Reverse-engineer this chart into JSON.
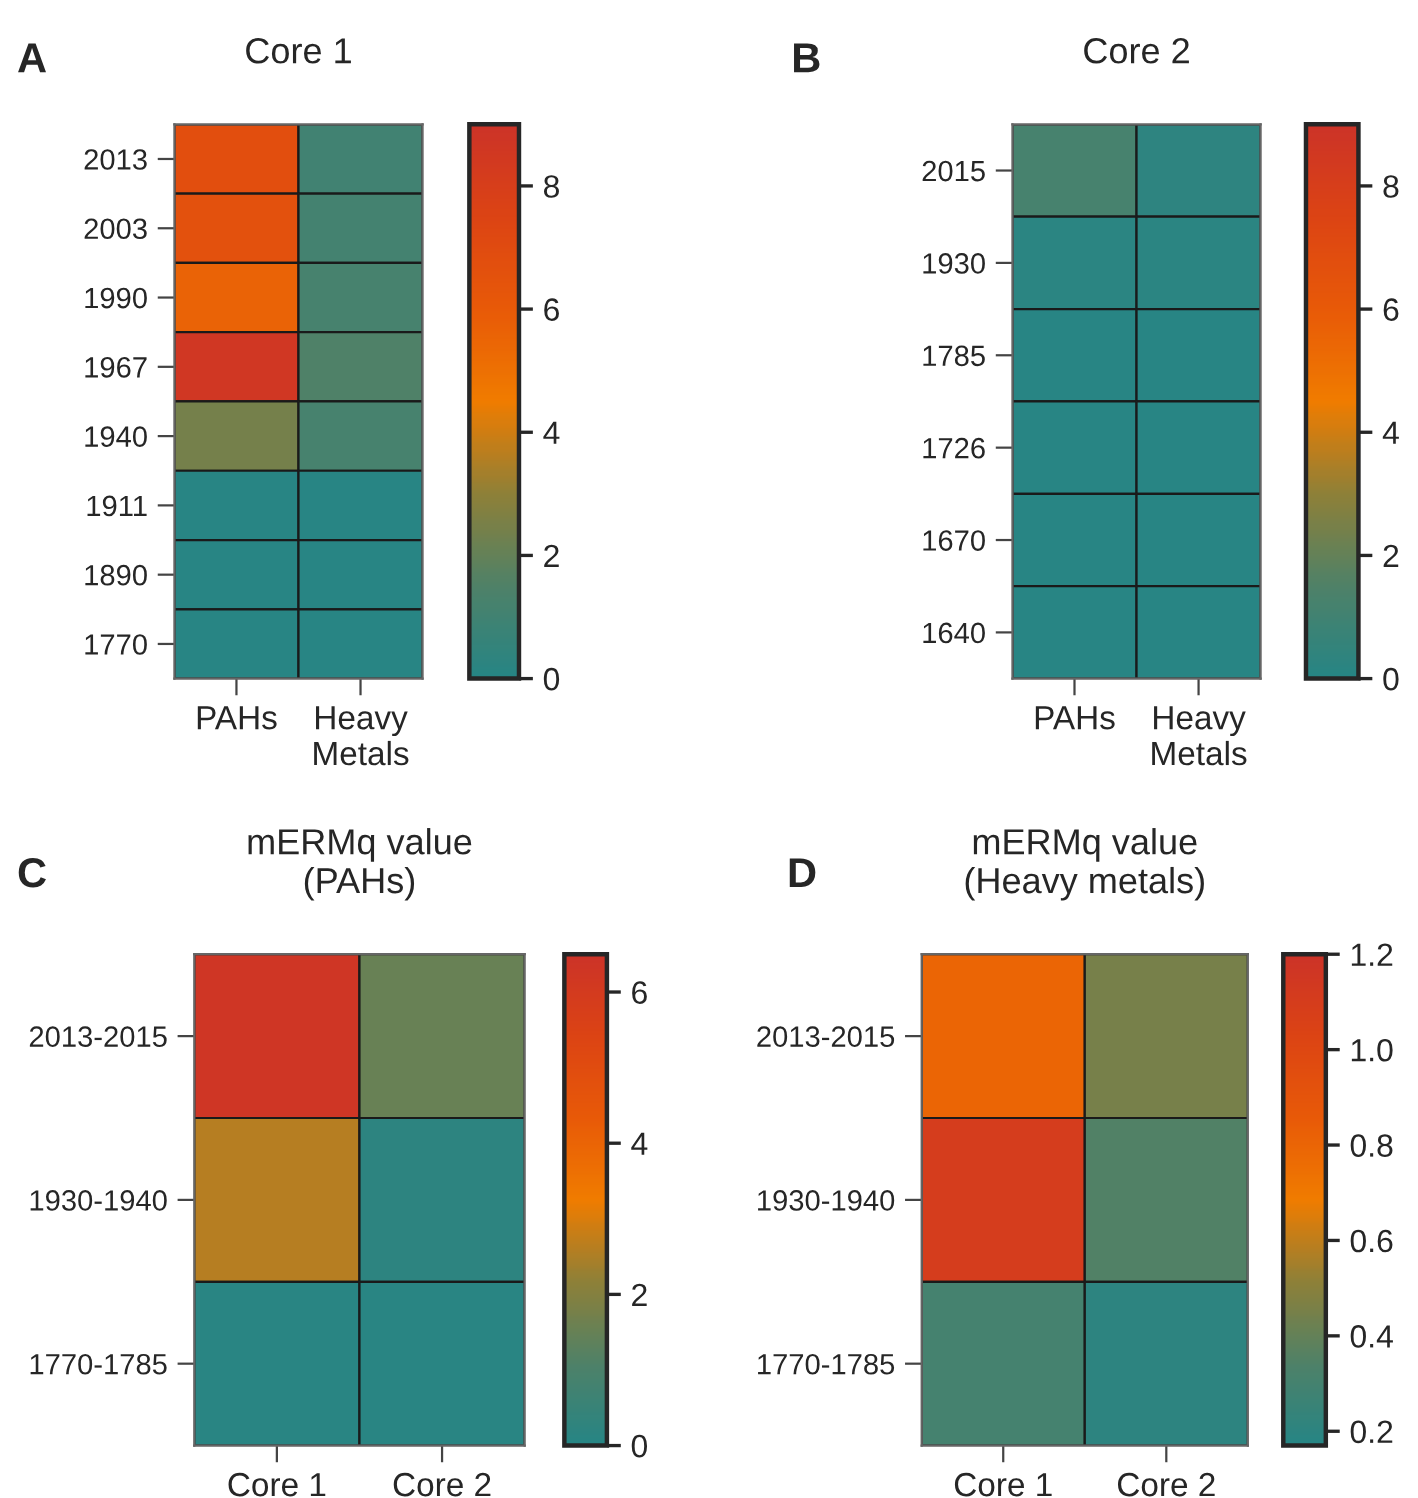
{
  "chart_data": [
    {
      "type": "heatmap",
      "title": "Core 1",
      "annotations": [
        "A"
      ],
      "categories": [
        "PAHs",
        "Heavy\nMetals"
      ],
      "y_categories": [
        "2013",
        "2003",
        "1990",
        "1967",
        "1940",
        "1911",
        "1890",
        "1770"
      ],
      "cells": [
        [
          6.8,
          1.0
        ],
        [
          6.6,
          1.1
        ],
        [
          5.6,
          1.2
        ],
        [
          8.6,
          1.5
        ],
        [
          2.4,
          1.2
        ],
        [
          0.1,
          0.1
        ],
        [
          0.1,
          0.1
        ],
        [
          0.1,
          0.1
        ]
      ],
      "clim": [
        0,
        9
      ],
      "cticks": [
        0,
        2,
        4,
        6,
        8
      ],
      "colors": [
        "#268585",
        "#4f8168",
        "#8f8038",
        "#f07c00",
        "#e85a08",
        "#dc4414",
        "#cc3328"
      ]
    },
    {
      "type": "heatmap",
      "title": "Core 2",
      "annotations": [
        "B"
      ],
      "categories": [
        "PAHs",
        "Heavy\nMetals"
      ],
      "y_categories": [
        "2015",
        "1930",
        "1785",
        "1726",
        "1670",
        "1640"
      ],
      "cells": [
        [
          1.2,
          0.3
        ],
        [
          0.2,
          0.2
        ],
        [
          0.1,
          0.1
        ],
        [
          0.1,
          0.1
        ],
        [
          0.1,
          0.1
        ],
        [
          0.1,
          0.1
        ]
      ],
      "clim": [
        0,
        9
      ],
      "cticks": [
        0,
        2,
        4,
        6,
        8
      ],
      "colors": [
        "#268585",
        "#4f8168",
        "#8f8038",
        "#f07c00",
        "#e85a08",
        "#dc4414",
        "#cc3328"
      ]
    },
    {
      "type": "heatmap",
      "title": "mERMq value\n(PAHs)",
      "annotations": [
        "C"
      ],
      "categories": [
        "Core 1",
        "Core 2"
      ],
      "y_categories": [
        "2013-2015",
        "1930-1940",
        "1770-1785"
      ],
      "cells": [
        [
          6.3,
          1.5
        ],
        [
          2.6,
          0.2
        ],
        [
          0.1,
          0.1
        ]
      ],
      "clim": [
        0,
        6.5
      ],
      "cticks": [
        0,
        2,
        4,
        6
      ],
      "colors": [
        "#268585",
        "#4f8168",
        "#8f8038",
        "#f07c00",
        "#e85a08",
        "#dc4414",
        "#cc3328"
      ]
    },
    {
      "type": "heatmap",
      "title": "mERMq value\n(Heavy metals)",
      "annotations": [
        "D"
      ],
      "categories": [
        "Core 1",
        "Core 2"
      ],
      "y_categories": [
        "2013-2015",
        "1930-1940",
        "1770-1785"
      ],
      "cells": [
        [
          0.8,
          0.45
        ],
        [
          1.1,
          0.35
        ],
        [
          0.3,
          0.2
        ]
      ],
      "clim": [
        0.17,
        1.2
      ],
      "cticks": [
        {
          "value": 0.2,
          "label": "0.2"
        },
        {
          "value": 0.4,
          "label": "0.4"
        },
        {
          "value": 0.6,
          "label": "0.6"
        },
        {
          "value": 0.8,
          "label": "0.8"
        },
        {
          "value": 1.0,
          "label": "1.0"
        },
        {
          "value": 1.2,
          "label": "1.2"
        }
      ],
      "colors": [
        "#268585",
        "#4f8168",
        "#8f8038",
        "#f07c00",
        "#e85a08",
        "#dc4414",
        "#cc3328"
      ]
    }
  ]
}
